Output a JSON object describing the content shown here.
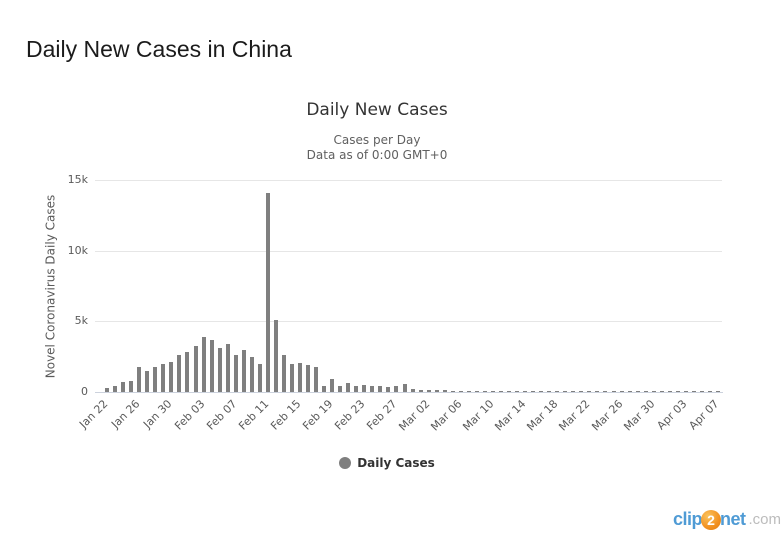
{
  "page": {
    "title": "Daily New Cases in China"
  },
  "watermark": {
    "clip": "clip",
    "two": "2",
    "net": "net",
    "dotcom": ".com"
  },
  "chart_data": {
    "type": "bar",
    "title": "Daily New Cases",
    "subtitle_line1": "Cases per Day",
    "subtitle_line2": "Data as of 0:00 GMT+0",
    "xlabel": "",
    "ylabel": "Novel Coronavirus Daily Cases",
    "ylim": [
      0,
      15000
    ],
    "grid": true,
    "legend": [
      "Daily Cases"
    ],
    "legend_position": "bottom",
    "bar_color": "#7f7f7f",
    "grid_color": "#e6e6e6",
    "axis_color": "#ccd2dd",
    "label_color": "#5a5a5a",
    "y_ticks": [
      {
        "label": "0",
        "value": 0
      },
      {
        "label": "5k",
        "value": 5000
      },
      {
        "label": "10k",
        "value": 10000
      },
      {
        "label": "15k",
        "value": 15000
      }
    ],
    "x_tick_every": 4,
    "x_tick_labels": [
      "Jan 22",
      "Jan 26",
      "Jan 30",
      "Feb 03",
      "Feb 07",
      "Feb 11",
      "Feb 15",
      "Feb 19",
      "Feb 23",
      "Feb 27",
      "Mar 02",
      "Mar 06",
      "Mar 10",
      "Mar 14",
      "Mar 18",
      "Mar 22",
      "Mar 26",
      "Mar 30",
      "Apr 03",
      "Apr 07"
    ],
    "categories": [
      "Jan 22",
      "Jan 23",
      "Jan 24",
      "Jan 25",
      "Jan 26",
      "Jan 27",
      "Jan 28",
      "Jan 29",
      "Jan 30",
      "Jan 31",
      "Feb 01",
      "Feb 02",
      "Feb 03",
      "Feb 04",
      "Feb 05",
      "Feb 06",
      "Feb 07",
      "Feb 08",
      "Feb 09",
      "Feb 10",
      "Feb 11",
      "Feb 12",
      "Feb 13",
      "Feb 14",
      "Feb 15",
      "Feb 16",
      "Feb 17",
      "Feb 18",
      "Feb 19",
      "Feb 20",
      "Feb 21",
      "Feb 22",
      "Feb 23",
      "Feb 24",
      "Feb 25",
      "Feb 26",
      "Feb 27",
      "Feb 28",
      "Feb 29",
      "Mar 01",
      "Mar 02",
      "Mar 03",
      "Mar 04",
      "Mar 05",
      "Mar 06",
      "Mar 07",
      "Mar 08",
      "Mar 09",
      "Mar 10",
      "Mar 11",
      "Mar 12",
      "Mar 13",
      "Mar 14",
      "Mar 15",
      "Mar 16",
      "Mar 17",
      "Mar 18",
      "Mar 19",
      "Mar 20",
      "Mar 21",
      "Mar 22",
      "Mar 23",
      "Mar 24",
      "Mar 25",
      "Mar 26",
      "Mar 27",
      "Mar 28",
      "Mar 29",
      "Mar 30",
      "Mar 31",
      "Apr 01",
      "Apr 02",
      "Apr 03",
      "Apr 04",
      "Apr 05",
      "Apr 06",
      "Apr 07",
      "Apr 08"
    ],
    "values": [
      0,
      259,
      457,
      688,
      769,
      1771,
      1459,
      1737,
      1981,
      2099,
      2589,
      2825,
      3235,
      3887,
      3694,
      3143,
      3385,
      2652,
      2973,
      2467,
      2015,
      14108,
      5090,
      2641,
      2009,
      2048,
      1888,
      1749,
      394,
      889,
      397,
      648,
      409,
      508,
      406,
      433,
      327,
      427,
      573,
      202,
      125,
      119,
      139,
      143,
      99,
      44,
      40,
      19,
      24,
      15,
      8,
      11,
      20,
      16,
      21,
      13,
      34,
      39,
      41,
      46,
      39,
      78,
      47,
      67,
      55,
      54,
      45,
      31,
      48,
      36,
      35,
      31,
      19,
      30,
      39,
      32,
      30,
      62
    ]
  }
}
